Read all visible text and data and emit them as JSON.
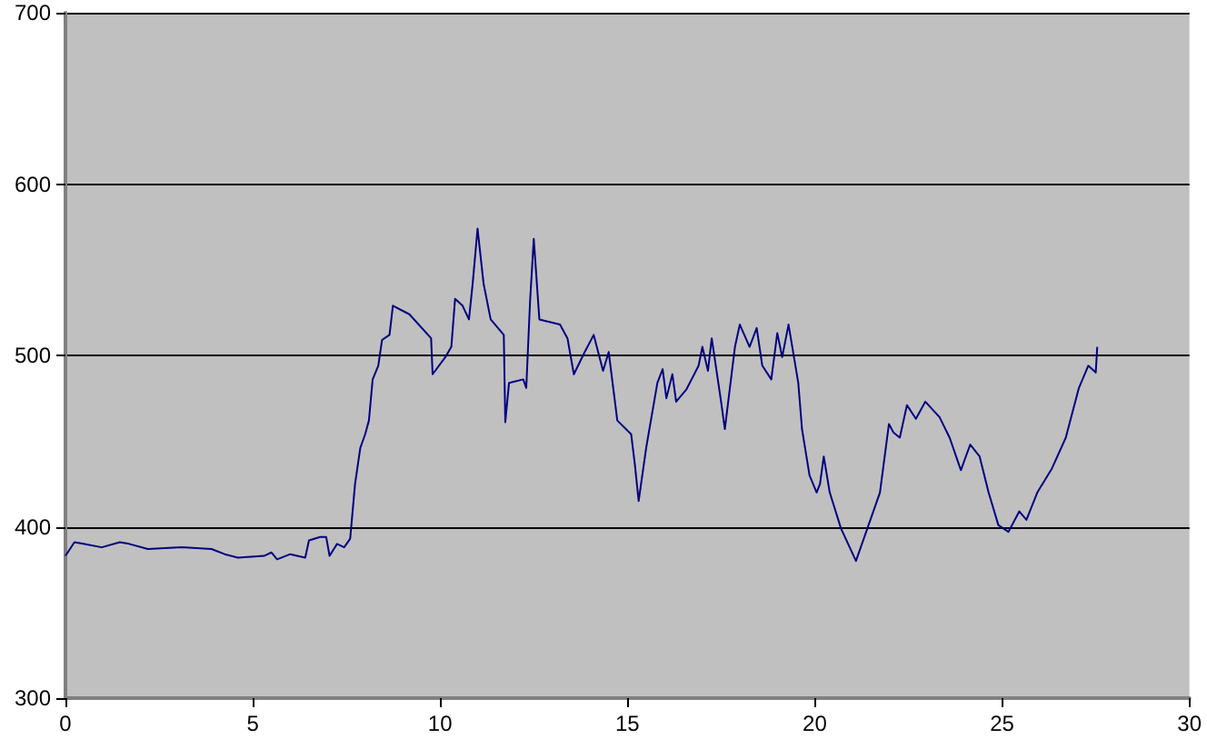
{
  "chart_data": {
    "type": "line",
    "x": [
      0,
      0.24,
      0.48,
      0.97,
      1.45,
      1.7,
      2.2,
      3.1,
      3.9,
      4.25,
      4.6,
      5.3,
      5.5,
      5.65,
      6.0,
      6.4,
      6.5,
      6.8,
      6.96,
      7.05,
      7.25,
      7.44,
      7.6,
      7.73,
      7.87,
      8.0,
      8.1,
      8.2,
      8.35,
      8.45,
      8.65,
      8.74,
      9.18,
      9.76,
      9.8,
      10.14,
      10.3,
      10.4,
      10.6,
      10.77,
      10.87,
      11.0,
      11.16,
      11.35,
      11.7,
      11.74,
      11.84,
      12.22,
      12.3,
      12.4,
      12.5,
      12.65,
      13.2,
      13.4,
      13.57,
      13.86,
      14.1,
      14.35,
      14.5,
      14.73,
      15.1,
      15.2,
      15.3,
      15.5,
      15.8,
      15.94,
      16.04,
      16.2,
      16.3,
      16.57,
      16.9,
      17.0,
      17.15,
      17.25,
      17.5,
      17.6,
      17.87,
      18.0,
      18.26,
      18.45,
      18.6,
      18.84,
      19.0,
      19.13,
      19.3,
      19.4,
      19.56,
      19.66,
      19.86,
      20.05,
      20.14,
      20.24,
      20.4,
      20.7,
      21.1,
      21.74,
      21.98,
      22.1,
      22.27,
      22.46,
      22.7,
      22.95,
      23.33,
      23.6,
      23.9,
      24.15,
      24.4,
      24.64,
      24.9,
      25.17,
      25.46,
      25.65,
      25.94,
      26.33,
      26.7,
      27.05,
      27.3,
      27.5,
      27.54
    ],
    "series": [
      {
        "color": "#000080",
        "values": [
          383,
          391,
          390,
          388,
          391,
          390,
          387,
          388,
          387,
          384,
          382,
          383,
          385,
          381,
          384,
          382,
          392,
          394,
          394,
          383,
          390,
          388,
          393,
          425,
          446,
          454,
          462,
          486,
          494,
          509,
          512,
          529,
          524,
          510,
          489,
          499,
          505,
          533,
          529,
          521,
          542,
          574,
          542,
          521,
          512,
          461,
          484,
          486,
          481,
          531,
          568,
          521,
          518,
          510,
          489,
          502,
          512,
          491,
          502,
          462,
          454,
          436,
          415,
          446,
          484,
          492,
          475,
          489,
          473,
          480,
          494,
          505,
          491,
          510,
          473,
          457,
          505,
          518,
          505,
          516,
          494,
          486,
          513,
          499,
          518,
          505,
          484,
          457,
          430,
          420,
          425,
          441,
          420,
          399,
          380,
          420,
          460,
          455,
          452,
          471,
          463,
          473,
          464,
          452,
          433,
          448,
          441,
          420,
          401,
          397,
          409,
          404,
          420,
          434,
          452,
          481,
          494,
          490,
          505
        ]
      }
    ],
    "xlim": [
      0,
      30
    ],
    "xticks": [
      0,
      5,
      10,
      15,
      20,
      25,
      30
    ],
    "ylim": [
      300,
      700
    ],
    "yticks": [
      300,
      400,
      500,
      600,
      700
    ],
    "grid": "y",
    "marker": "none",
    "line_style": "solid"
  }
}
